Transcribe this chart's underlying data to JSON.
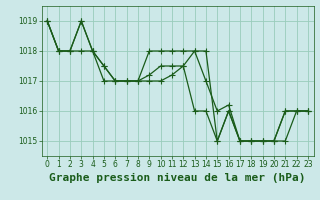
{
  "bg_color": "#cce8e8",
  "grid_color": "#99ccbb",
  "line_color": "#1a5c1a",
  "title": "Graphe pression niveau de la mer (hPa)",
  "xlim": [
    -0.5,
    23.5
  ],
  "ylim": [
    1014.5,
    1019.5
  ],
  "yticks": [
    1015,
    1016,
    1017,
    1018,
    1019
  ],
  "xticks": [
    0,
    1,
    2,
    3,
    4,
    5,
    6,
    7,
    8,
    9,
    10,
    11,
    12,
    13,
    14,
    15,
    16,
    17,
    18,
    19,
    20,
    21,
    22,
    23
  ],
  "series": [
    [
      1019.0,
      1018.0,
      1018.0,
      1019.0,
      1018.0,
      1017.5,
      1017.0,
      1017.0,
      1017.0,
      1017.2,
      1017.5,
      1017.5,
      1017.5,
      1016.0,
      1016.0,
      1015.0,
      1016.0,
      1015.0,
      1015.0,
      1015.0,
      1015.0,
      1016.0,
      1016.0,
      1016.0
    ],
    [
      1019.0,
      1018.0,
      1018.0,
      1018.0,
      1018.0,
      1017.0,
      1017.0,
      1017.0,
      1017.0,
      1018.0,
      1018.0,
      1018.0,
      1018.0,
      1018.0,
      1017.0,
      1016.0,
      1016.2,
      1015.0,
      1015.0,
      1015.0,
      1015.0,
      1015.0,
      1016.0,
      1016.0
    ],
    [
      1019.0,
      1018.0,
      1018.0,
      1019.0,
      1018.0,
      1017.5,
      1017.0,
      1017.0,
      1017.0,
      1017.0,
      1017.0,
      1017.2,
      1017.5,
      1018.0,
      1018.0,
      1015.0,
      1016.0,
      1015.0,
      1015.0,
      1015.0,
      1015.0,
      1016.0,
      1016.0,
      1016.0
    ]
  ],
  "marker": "+",
  "markersize": 4,
  "linewidth": 0.9,
  "title_fontsize": 8,
  "tick_fontsize": 5.5
}
